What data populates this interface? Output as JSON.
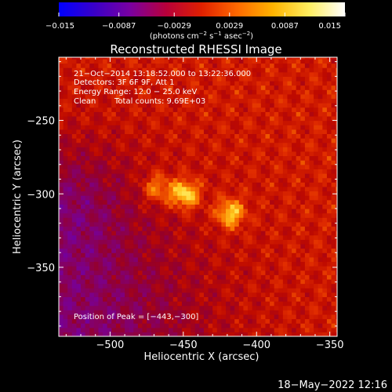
{
  "chart_data": {
    "type": "heatmap",
    "title": "Reconstructed RHESSI Image",
    "xlabel": "Heliocentric X (arcsec)",
    "ylabel": "Heliocentric Y (arcsec)",
    "xlim": [
      -535,
      -345
    ],
    "ylim": [
      -397,
      -207
    ],
    "x_ticks": [
      -500,
      -450,
      -400,
      -350
    ],
    "x_tick_labels": [
      "−500",
      "−450",
      "−400",
      "−350"
    ],
    "y_ticks": [
      -250,
      -300,
      -350
    ],
    "y_tick_labels": [
      "−250",
      "−300",
      "−350"
    ],
    "colorbar": {
      "min": -0.015,
      "max": 0.015,
      "ticks": [
        -0.015,
        -0.0087,
        -0.0029,
        0.0029,
        0.0087,
        0.015
      ],
      "tick_labels": [
        "−0.015",
        "−0.0087",
        "−0.0029",
        "0.0029",
        "0.0087",
        "0.015"
      ],
      "colors": [
        "#0000ff",
        "#3a00c8",
        "#7a00a0",
        "#b8003a",
        "#e02000",
        "#ff6a00",
        "#ffb400",
        "#ffee60",
        "#ffffff"
      ]
    },
    "sources": [
      {
        "x": -449,
        "y": -300,
        "peak": 0.015
      },
      {
        "x": -418,
        "y": -313,
        "peak": 0.0135
      },
      {
        "x": -468,
        "y": -296,
        "peak": 0.011
      }
    ],
    "background_level": 0.0045,
    "peak_position": [
      -443,
      -300
    ]
  },
  "colorbar_unit": {
    "prefix": "(photons cm",
    "exp1": "−2",
    "mid1": " s",
    "exp2": "−1",
    "mid2": " asec",
    "exp3": "−2",
    "suffix": ")"
  },
  "info": {
    "time_range": "21−Oct−2014 13:18:52.000 to 13:22:36.000",
    "detectors": "Detectors: 3F 6F 9F, Att 1",
    "energy": "Energy Range: 12.0 − 25.0 keV",
    "method": "Clean",
    "counts": "Total counts: 9.69E+03",
    "peak_label": "Position of Peak = [−443,−300]"
  },
  "footer": {
    "timestamp": "18−May−2022 12:16"
  }
}
